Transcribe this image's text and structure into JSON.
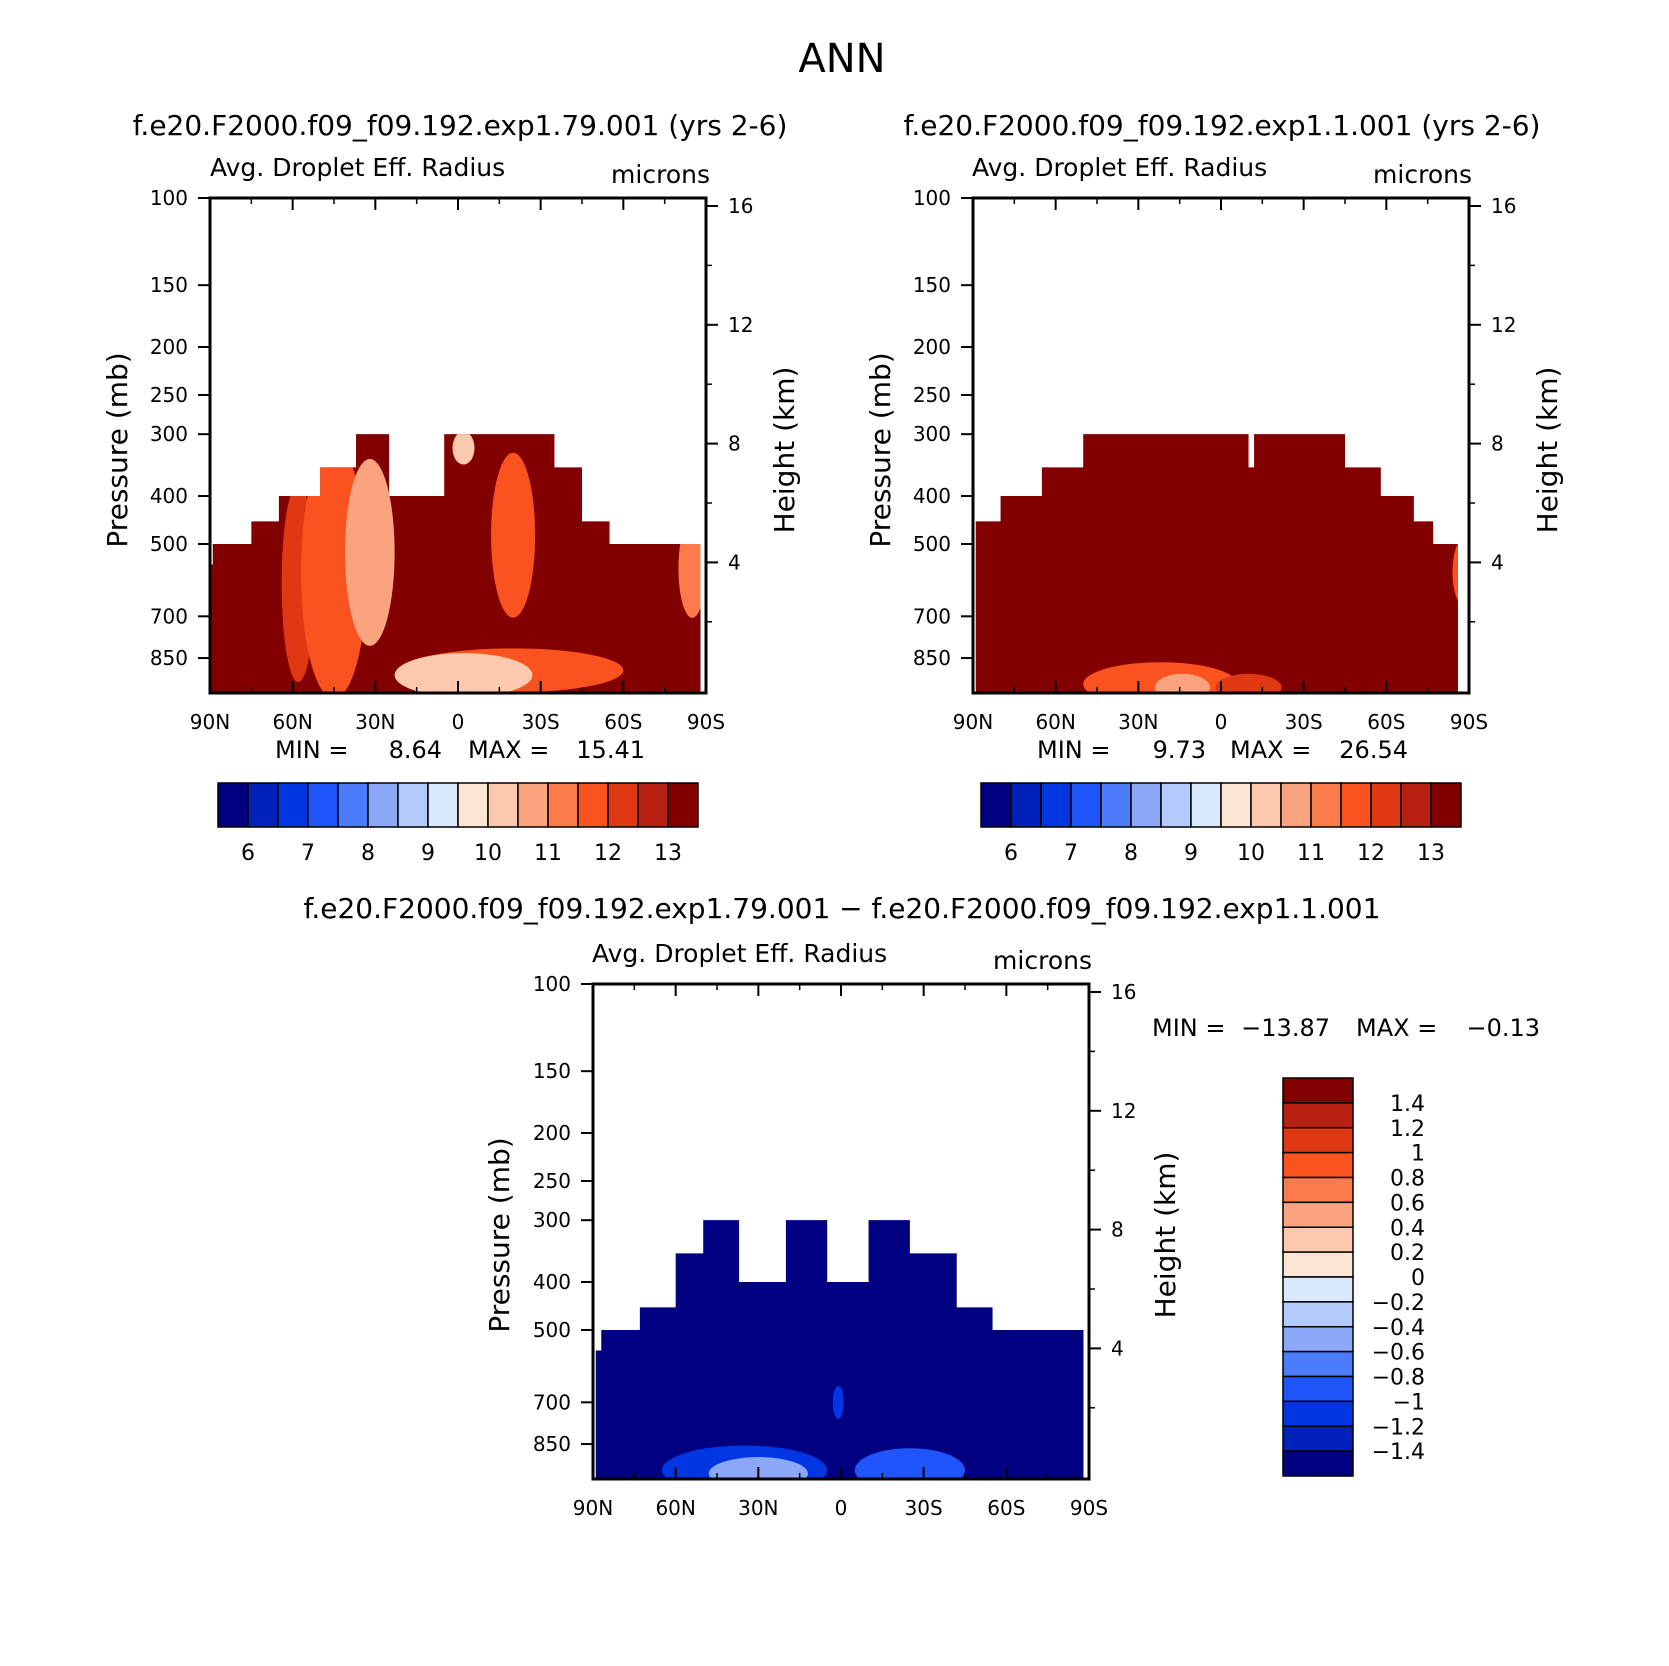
{
  "page_title": "ANN",
  "colors": {
    "cb_abs": [
      "#000080",
      "#0021ba",
      "#0037e3",
      "#1f55fb",
      "#4c7cf9",
      "#8aa8f7",
      "#b3c8fb",
      "#d9e8fa",
      "#fde5d3",
      "#fcc9ae",
      "#fba37e",
      "#fb7a4a",
      "#fb531f",
      "#e03812",
      "#b82112",
      "#820000"
    ],
    "cb_diff": [
      "#000080",
      "#0021ba",
      "#0037e3",
      "#1f55fb",
      "#4c7cf9",
      "#8aa8f7",
      "#b3c8fb",
      "#d9e8fa",
      "#fde5d3",
      "#fcc9ae",
      "#fba37e",
      "#fb7a4a",
      "#fb531f",
      "#e03812",
      "#b82112",
      "#820000"
    ]
  },
  "chart_data": [
    {
      "id": "p1",
      "type": "heatmap",
      "title": "f.e20.F2000.f09_f09.192.exp1.79.001 (yrs 2-6)",
      "subtitle_left": "Avg. Droplet Eff. Radius",
      "subtitle_right": "microns",
      "ylabel": "Pressure (mb)",
      "y2label": "Height (km)",
      "x_ticks": [
        "90N",
        "60N",
        "30N",
        "0",
        "30S",
        "60S",
        "90S"
      ],
      "x_values": [
        90,
        60,
        30,
        0,
        -30,
        -60,
        -90
      ],
      "y_ticks": [
        "100",
        "150",
        "200",
        "250",
        "300",
        "400",
        "500",
        "700",
        "850"
      ],
      "y_values": [
        100,
        150,
        200,
        250,
        300,
        400,
        500,
        700,
        850
      ],
      "ylim": [
        100,
        1000
      ],
      "y2_ticks": [
        "16",
        "12",
        "8",
        "4"
      ],
      "y2_values": [
        16,
        12,
        8,
        4
      ],
      "min_label": "MIN =",
      "min_value": "8.64",
      "max_label": "MAX =",
      "max_value": "15.41",
      "colorbar_labels": [
        "6",
        "7",
        "8",
        "9",
        "10",
        "11",
        "12",
        "13"
      ],
      "cloud_top_steps": [
        {
          "lat0": 90,
          "lat1": 89,
          "p": 550
        },
        {
          "lat0": 89,
          "lat1": 87,
          "p": 500
        },
        {
          "lat0": 87,
          "lat1": 75,
          "p": 500
        },
        {
          "lat0": 75,
          "lat1": 65,
          "p": 450
        },
        {
          "lat0": 65,
          "lat1": 50,
          "p": 400
        },
        {
          "lat0": 50,
          "lat1": 37,
          "p": 350
        },
        {
          "lat0": 37,
          "lat1": 25,
          "p": 300
        },
        {
          "lat0": 25,
          "lat1": 5,
          "p": 400
        },
        {
          "lat0": 5,
          "lat1": -35,
          "p": 300
        },
        {
          "lat0": -35,
          "lat1": -45,
          "p": 350
        },
        {
          "lat0": -45,
          "lat1": -55,
          "p": 450
        },
        {
          "lat0": -55,
          "lat1": -70,
          "p": 500
        },
        {
          "lat0": -70,
          "lat1": -89,
          "p": 500
        }
      ],
      "bottom_cut": [
        {
          "lat0": -88,
          "lat1": -90,
          "p": 950
        }
      ],
      "base_color": "#820000",
      "patches": [
        {
          "lat": 58,
          "p": 600,
          "rx": 6,
          "ry": 180,
          "color": "#e03812"
        },
        {
          "lat": 45,
          "p": 570,
          "rx": 12,
          "ry": 230,
          "color": "#fb531f"
        },
        {
          "lat": 32,
          "p": 520,
          "rx": 9,
          "ry": 170,
          "color": "#fba37e"
        },
        {
          "lat": 12,
          "p": 520,
          "rx": 5,
          "ry": 120,
          "color": "#820000"
        },
        {
          "lat": -8,
          "p": 510,
          "rx": 4,
          "ry": 40,
          "color": "#820000"
        },
        {
          "lat": -2,
          "p": 320,
          "rx": 4,
          "ry": 30,
          "color": "#fcc9ae"
        },
        {
          "lat": -20,
          "p": 480,
          "rx": 8,
          "ry": 150,
          "color": "#fb531f"
        },
        {
          "lat": -20,
          "p": 900,
          "rx": 40,
          "ry": 40,
          "color": "#fb531f"
        },
        {
          "lat": -2,
          "p": 920,
          "rx": 25,
          "ry": 40,
          "color": "#fcc9ae"
        },
        {
          "lat": -85,
          "p": 560,
          "rx": 5,
          "ry": 90,
          "color": "#fb7a4a"
        }
      ]
    },
    {
      "id": "p2",
      "type": "heatmap",
      "title": "f.e20.F2000.f09_f09.192.exp1.1.001 (yrs 2-6)",
      "subtitle_left": "Avg. Droplet Eff. Radius",
      "subtitle_right": "microns",
      "ylabel": "Pressure (mb)",
      "y2label": "Height (km)",
      "x_ticks": [
        "90N",
        "60N",
        "30N",
        "0",
        "30S",
        "60S",
        "90S"
      ],
      "x_values": [
        90,
        60,
        30,
        0,
        -30,
        -60,
        -90
      ],
      "y_ticks": [
        "100",
        "150",
        "200",
        "250",
        "300",
        "400",
        "500",
        "700",
        "850"
      ],
      "y_values": [
        100,
        150,
        200,
        250,
        300,
        400,
        500,
        700,
        850
      ],
      "ylim": [
        100,
        1000
      ],
      "y2_ticks": [
        "16",
        "12",
        "8",
        "4"
      ],
      "y2_values": [
        16,
        12,
        8,
        4
      ],
      "min_label": "MIN =",
      "min_value": "9.73",
      "max_label": "MAX =",
      "max_value": "26.54",
      "colorbar_labels": [
        "6",
        "7",
        "8",
        "9",
        "10",
        "11",
        "12",
        "13"
      ],
      "cloud_top_steps": [
        {
          "lat0": 89,
          "lat1": 80,
          "p": 450
        },
        {
          "lat0": 80,
          "lat1": 65,
          "p": 400
        },
        {
          "lat0": 65,
          "lat1": 50,
          "p": 350
        },
        {
          "lat0": 50,
          "lat1": -10,
          "p": 300
        },
        {
          "lat0": -10,
          "lat1": -12,
          "p": 350
        },
        {
          "lat0": -12,
          "lat1": -45,
          "p": 300
        },
        {
          "lat0": -45,
          "lat1": -58,
          "p": 350
        },
        {
          "lat0": -58,
          "lat1": -70,
          "p": 400
        },
        {
          "lat0": -70,
          "lat1": -77,
          "p": 450
        },
        {
          "lat0": -77,
          "lat1": -90,
          "p": 500
        }
      ],
      "bottom_cut": [
        {
          "lat0": -86,
          "lat1": -90,
          "p": 700
        }
      ],
      "base_color": "#820000",
      "patches": [
        {
          "lat": 22,
          "p": 960,
          "rx": 28,
          "ry": 40,
          "color": "#fb531f"
        },
        {
          "lat": 14,
          "p": 975,
          "rx": 10,
          "ry": 25,
          "color": "#fba37e"
        },
        {
          "lat": -10,
          "p": 975,
          "rx": 12,
          "ry": 25,
          "color": "#e03812"
        },
        {
          "lat": -88,
          "p": 570,
          "rx": 4,
          "ry": 60,
          "color": "#fb531f"
        }
      ]
    },
    {
      "id": "p3",
      "type": "heatmap",
      "title": "f.e20.F2000.f09_f09.192.exp1.79.001 − f.e20.F2000.f09_f09.192.exp1.1.001",
      "subtitle_left": "Avg. Droplet Eff. Radius",
      "subtitle_right": "microns",
      "ylabel": "Pressure (mb)",
      "y2label": "Height (km)",
      "x_ticks": [
        "90N",
        "60N",
        "30N",
        "0",
        "30S",
        "60S",
        "90S"
      ],
      "x_values": [
        90,
        60,
        30,
        0,
        -30,
        -60,
        -90
      ],
      "y_ticks": [
        "100",
        "150",
        "200",
        "250",
        "300",
        "400",
        "500",
        "700",
        "850"
      ],
      "y_values": [
        100,
        150,
        200,
        250,
        300,
        400,
        500,
        700,
        850
      ],
      "ylim": [
        100,
        1000
      ],
      "y2_ticks": [
        "16",
        "12",
        "8",
        "4"
      ],
      "y2_values": [
        16,
        12,
        8,
        4
      ],
      "min_label": "MIN =",
      "min_value": "−13.87",
      "max_label": "MAX =",
      "max_value": "−0.13",
      "colorbar_labels": [
        "1.4",
        "1.2",
        "1",
        "0.8",
        "0.6",
        "0.4",
        "0.2",
        "0",
        "−0.2",
        "−0.4",
        "−0.6",
        "−0.8",
        "−1",
        "−1.2",
        "−1.4"
      ],
      "cloud_top_steps": [
        {
          "lat0": 89,
          "lat1": 87,
          "p": 550
        },
        {
          "lat0": 87,
          "lat1": 73,
          "p": 500
        },
        {
          "lat0": 73,
          "lat1": 60,
          "p": 450
        },
        {
          "lat0": 60,
          "lat1": 50,
          "p": 350
        },
        {
          "lat0": 50,
          "lat1": 37,
          "p": 300
        },
        {
          "lat0": 37,
          "lat1": 20,
          "p": 400
        },
        {
          "lat0": 20,
          "lat1": 5,
          "p": 300
        },
        {
          "lat0": 5,
          "lat1": -10,
          "p": 400
        },
        {
          "lat0": -10,
          "lat1": -25,
          "p": 300
        },
        {
          "lat0": -25,
          "lat1": -42,
          "p": 350
        },
        {
          "lat0": -42,
          "lat1": -55,
          "p": 450
        },
        {
          "lat0": -55,
          "lat1": -65,
          "p": 500
        },
        {
          "lat0": -65,
          "lat1": -89,
          "p": 500
        }
      ],
      "bottom_cut": [
        {
          "lat0": -88,
          "lat1": -90,
          "p": 700
        }
      ],
      "base_color": "#000080",
      "patches": [
        {
          "lat": 35,
          "p": 960,
          "rx": 30,
          "ry": 45,
          "color": "#0037e3"
        },
        {
          "lat": 30,
          "p": 975,
          "rx": 18,
          "ry": 30,
          "color": "#8aa8f7"
        },
        {
          "lat": -25,
          "p": 960,
          "rx": 20,
          "ry": 40,
          "color": "#1f55fb"
        },
        {
          "lat": 1,
          "p": 700,
          "rx": 2,
          "ry": 30,
          "color": "#0037e3"
        }
      ]
    }
  ]
}
